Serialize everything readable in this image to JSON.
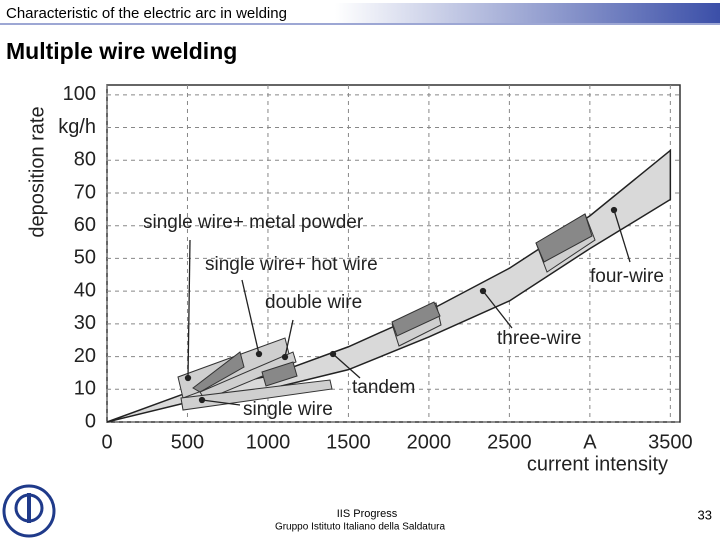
{
  "header": {
    "title": "Characteristic of the electric arc in welding",
    "subtitle": "Multiple wire welding"
  },
  "chart_data": {
    "type": "area",
    "x": [
      0,
      500,
      1000,
      1500,
      2000,
      2500,
      3000,
      3500
    ],
    "upper": [
      0,
      9,
      14,
      23,
      34,
      47,
      63,
      83
    ],
    "lower": [
      0,
      6,
      10,
      16,
      26,
      37,
      53,
      68
    ],
    "color": "#d9d9d9",
    "xlabel": "current intensity",
    "ylabel": "deposition rate",
    "xlim": [
      0,
      3560
    ],
    "ylim": [
      0,
      103
    ],
    "xticks": [
      0,
      500,
      1000,
      1500,
      2000,
      2500,
      {
        "value": 3000,
        "label": "A"
      },
      3500
    ],
    "yticks": [
      0,
      10,
      20,
      30,
      40,
      50,
      60,
      70,
      80,
      {
        "value": 90,
        "label": "kg/h"
      },
      100
    ],
    "grid": true,
    "annotations": [
      "single wire+ metal powder",
      "single wire+ hot wire",
      "double wire",
      "single wire",
      "tandem",
      "three-wire",
      "four-wire"
    ]
  },
  "footer": {
    "org": "IIS Progress",
    "org_full": "Gruppo Istituto Italiano della Saldatura",
    "page": "33"
  }
}
